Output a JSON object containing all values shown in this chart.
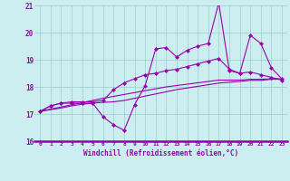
{
  "xlabel": "Windchill (Refroidissement éolien,°C)",
  "hours": [
    0,
    1,
    2,
    3,
    4,
    5,
    6,
    7,
    8,
    9,
    10,
    11,
    12,
    13,
    14,
    15,
    16,
    17,
    18,
    19,
    20,
    21,
    22,
    23
  ],
  "line1": [
    17.1,
    17.3,
    17.4,
    17.4,
    17.4,
    17.4,
    16.9,
    16.6,
    16.4,
    17.35,
    18.05,
    19.4,
    19.45,
    19.1,
    19.35,
    19.5,
    19.6,
    21.1,
    18.6,
    18.5,
    19.9,
    19.6,
    18.7,
    18.3
  ],
  "line2": [
    17.1,
    17.3,
    17.4,
    17.45,
    17.45,
    17.45,
    17.5,
    17.9,
    18.15,
    18.3,
    18.45,
    18.5,
    18.6,
    18.65,
    18.75,
    18.85,
    18.95,
    19.05,
    18.65,
    18.5,
    18.55,
    18.45,
    18.35,
    18.25
  ],
  "line3": [
    17.1,
    17.18,
    17.26,
    17.34,
    17.42,
    17.5,
    17.58,
    17.65,
    17.72,
    17.79,
    17.86,
    17.93,
    18.0,
    18.05,
    18.1,
    18.15,
    18.2,
    18.25,
    18.25,
    18.25,
    18.28,
    18.28,
    18.3,
    18.3
  ],
  "line4": [
    17.1,
    17.16,
    17.22,
    17.3,
    17.36,
    17.4,
    17.43,
    17.45,
    17.5,
    17.58,
    17.66,
    17.74,
    17.82,
    17.9,
    17.96,
    18.02,
    18.08,
    18.14,
    18.17,
    18.2,
    18.24,
    18.24,
    18.28,
    18.28
  ],
  "ylim_min": 16,
  "ylim_max": 21,
  "yticks": [
    16,
    17,
    18,
    19,
    20,
    21
  ],
  "line_color": "#9900aa",
  "bg_color": "#cceef0",
  "grid_color": "#99cccc",
  "markersize": 2.5,
  "linewidth": 0.8
}
